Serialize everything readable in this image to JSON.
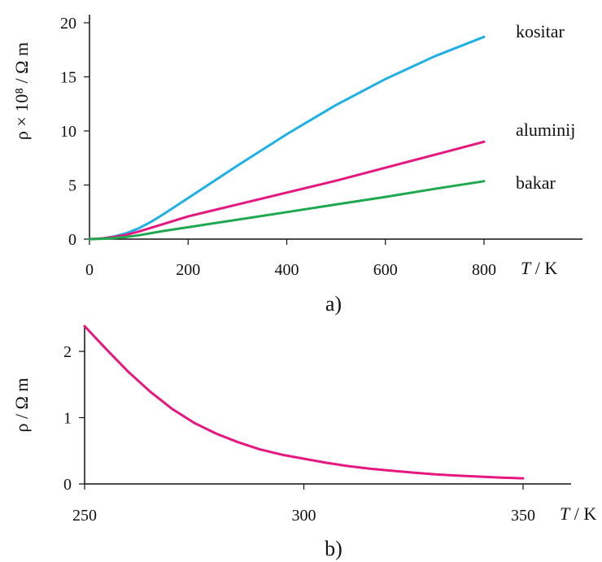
{
  "chart_data": [
    {
      "type": "line",
      "panel_label": "a)",
      "ylabel": "ρ × 10⁸ / Ω m",
      "xlabel": "T / K",
      "xlabel_symbol": "T",
      "xlabel_unit": "/ K",
      "xlim": [
        0,
        1000
      ],
      "ylim": [
        0,
        20
      ],
      "xticks": [
        0,
        200,
        400,
        600,
        800
      ],
      "yticks": [
        0,
        5,
        10,
        15,
        20
      ],
      "grid": false,
      "legend": "direct labels at line ends",
      "series": [
        {
          "name": "kositar",
          "color": "#1fb0e6",
          "x": [
            0,
            25,
            50,
            75,
            100,
            125,
            150,
            200,
            300,
            400,
            500,
            600,
            700,
            800
          ],
          "y": [
            0,
            0.05,
            0.25,
            0.55,
            1.0,
            1.6,
            2.3,
            3.8,
            6.8,
            9.7,
            12.4,
            14.8,
            16.9,
            18.7
          ]
        },
        {
          "name": "aluminij",
          "color": "#e6177f",
          "x": [
            0,
            25,
            50,
            75,
            100,
            150,
            200,
            300,
            400,
            500,
            600,
            700,
            800
          ],
          "y": [
            0,
            0.05,
            0.2,
            0.4,
            0.7,
            1.4,
            2.1,
            3.2,
            4.3,
            5.4,
            6.6,
            7.8,
            9.0
          ]
        },
        {
          "name": "bakar",
          "color": "#1fa84f",
          "x": [
            0,
            25,
            50,
            75,
            100,
            150,
            200,
            300,
            400,
            500,
            600,
            700,
            800
          ],
          "y": [
            0,
            0.03,
            0.1,
            0.2,
            0.35,
            0.75,
            1.1,
            1.8,
            2.5,
            3.2,
            3.9,
            4.65,
            5.35
          ]
        }
      ]
    },
    {
      "type": "line",
      "panel_label": "b)",
      "ylabel": "ρ / Ω m",
      "xlabel": "T / K",
      "xlabel_symbol": "T",
      "xlabel_unit": "/ K",
      "xlim": [
        250,
        360
      ],
      "ylim": [
        0,
        2.4
      ],
      "xticks": [
        250,
        300,
        350
      ],
      "yticks": [
        0,
        1,
        2
      ],
      "grid": false,
      "series": [
        {
          "color": "#e6177f",
          "x": [
            250,
            255,
            260,
            265,
            270,
            275,
            280,
            285,
            290,
            295,
            300,
            305,
            310,
            315,
            320,
            325,
            330,
            335,
            340,
            345,
            350
          ],
          "y": [
            2.38,
            2.03,
            1.69,
            1.39,
            1.13,
            0.92,
            0.76,
            0.63,
            0.52,
            0.44,
            0.38,
            0.32,
            0.27,
            0.23,
            0.2,
            0.17,
            0.145,
            0.125,
            0.11,
            0.095,
            0.085
          ]
        }
      ]
    }
  ]
}
